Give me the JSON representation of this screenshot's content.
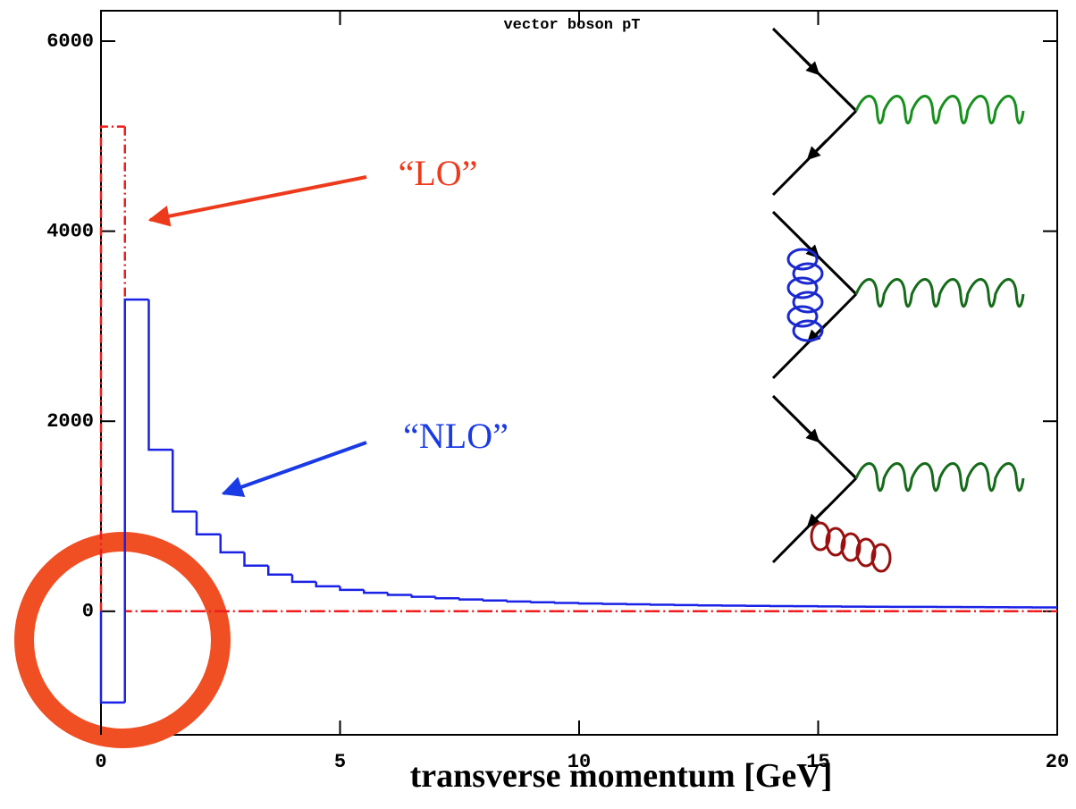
{
  "chart_data": {
    "type": "histogram",
    "title": "vector boson pT",
    "x_label": "transverse momentum [GeV]",
    "bins": [
      0,
      0.5,
      1,
      1.5,
      2,
      2.5,
      3,
      3.5,
      4,
      4.5,
      5,
      5.5,
      6,
      6.5,
      7,
      7.5,
      8,
      8.5,
      9,
      9.5,
      10,
      10.5,
      11,
      11.5,
      12,
      12.5,
      13,
      13.5,
      14,
      14.5,
      15,
      15.5,
      16,
      16.5,
      17,
      17.5,
      18,
      18.5,
      19,
      19.5,
      20
    ],
    "series": [
      {
        "color": "#ee1c1c",
        "dashed": true,
        "values": [
          5100,
          0,
          0,
          0,
          0,
          0,
          0,
          0,
          0,
          0,
          0,
          0,
          0,
          0,
          0,
          0,
          0,
          0,
          0,
          0,
          0,
          0,
          0,
          0,
          0,
          0,
          0,
          0,
          0,
          0,
          0,
          0,
          0,
          0,
          0,
          0,
          0,
          0,
          0,
          0
        ]
      },
      {
        "color": "#1a22e6",
        "dashed": false,
        "values": [
          -960,
          3280,
          1700,
          1050,
          810,
          620,
          480,
          386,
          310,
          263,
          225,
          195,
          172,
          152,
          137,
          124,
          113,
          103,
          95,
          88,
          82,
          77,
          73,
          69,
          65,
          62,
          59,
          57,
          55,
          53,
          51,
          49,
          48,
          47,
          46,
          45,
          44,
          43,
          42,
          41
        ]
      }
    ],
    "annotations": [
      {
        "text": "“LO”",
        "color": "#ee3a1c"
      },
      {
        "text": "“NLO”",
        "color": "#1a3ae6"
      }
    ],
    "xlim": [
      0,
      20
    ],
    "ylim": [
      -1300,
      6320
    ],
    "xticks": [
      0,
      5,
      10,
      15,
      20
    ],
    "yticks": [
      0,
      2000,
      4000,
      6000
    ]
  }
}
